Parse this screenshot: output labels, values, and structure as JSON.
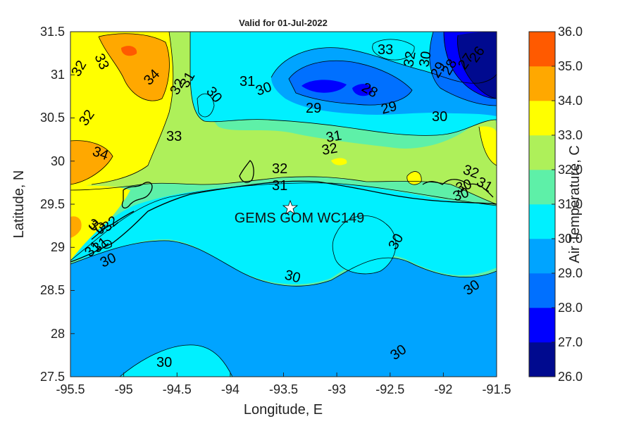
{
  "title": "Valid for 01-Jul-2022",
  "xlabel": "Longitude, E",
  "ylabel": "Latitude, N",
  "colorbar_label": "Air Temperature, C",
  "station_label": "GEMS GOM WC149",
  "x_ticks": [
    "-95.5",
    "-95",
    "-94.5",
    "-94",
    "-93.5",
    "-93",
    "-92.5",
    "-92",
    "-91.5"
  ],
  "y_ticks": [
    "27.5",
    "28",
    "28.5",
    "29",
    "29.5",
    "30",
    "30.5",
    "31",
    "31.5"
  ],
  "colorbar_ticks": [
    "26.0",
    "27.0",
    "28.0",
    "29.0",
    "30.0",
    "31.0",
    "32.0",
    "33.0",
    "34.0",
    "35.0",
    "36.0"
  ],
  "colorbar_colors": [
    "#000a8f",
    "#0000ff",
    "#0070ff",
    "#00a4ff",
    "#00f0ff",
    "#5ef0a8",
    "#aef05a",
    "#ffff00",
    "#ffa800",
    "#ff5a00"
  ],
  "contour_labels": [
    "33",
    "32",
    "34",
    "32",
    "31",
    "30",
    "31",
    "30",
    "33",
    "32",
    "30",
    "28",
    "29",
    "29",
    "30",
    "26",
    "27",
    "28",
    "29",
    "32",
    "33",
    "34",
    "33",
    "31",
    "32",
    "32",
    "31",
    "32",
    "31",
    "30",
    "30",
    "31",
    "32",
    "33",
    "30",
    "31",
    "30",
    "30",
    "30",
    "30",
    "30",
    "30",
    "30"
  ],
  "chart_data": {
    "type": "heatmap",
    "title": "Valid for 01-Jul-2022",
    "xlabel": "Longitude, E",
    "ylabel": "Latitude, N",
    "xlim": [
      -95.5,
      -91.5
    ],
    "ylim": [
      27.5,
      31.5
    ],
    "colorbar": {
      "label": "Air Temperature, C",
      "range": [
        26.0,
        36.0
      ],
      "step": 1.0
    },
    "station": {
      "name": "GEMS GOM WC149",
      "lon": -93.45,
      "lat": 29.44
    },
    "field_summary": "Air temperature mostly 30-31 C over the Gulf, 31-34 C over land, minima ~27-28 C near 31N -93/-91.7"
  }
}
